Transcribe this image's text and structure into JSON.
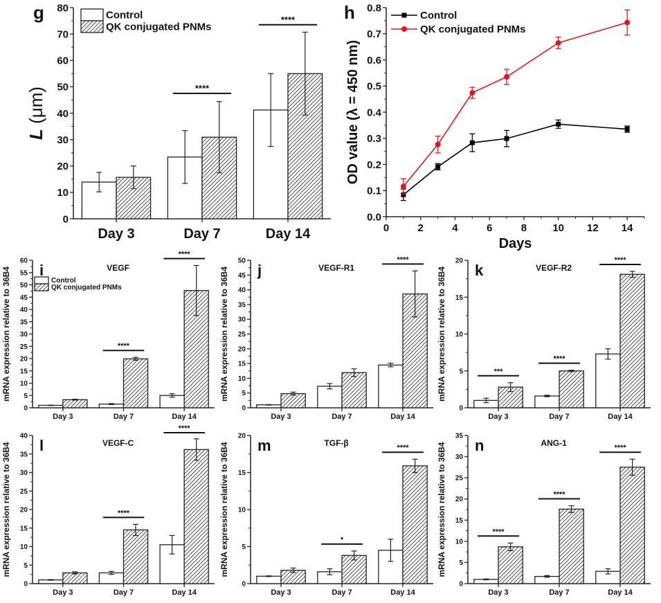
{
  "figure": {
    "series_names": [
      "Control",
      "QK conjugated PNMs"
    ],
    "colors": {
      "control_fill": "#ffffff",
      "qk_hatch": "#222222",
      "line_control": "#000000",
      "line_qk": "#e8141c",
      "axis": "#222222"
    }
  },
  "chart_data": [
    {
      "id": "g",
      "panel_label": "g",
      "type": "bar",
      "title": "",
      "xlabel": "",
      "ylabel": "L (μm)",
      "ylabel_italic_part": "L",
      "ylabel_rest": " (μm)",
      "categories": [
        "Day 3",
        "Day 7",
        "Day 14"
      ],
      "ylim": [
        0,
        80
      ],
      "yticks": [
        0,
        10,
        20,
        30,
        40,
        50,
        60,
        70,
        80
      ],
      "series": [
        {
          "name": "Control",
          "values": [
            13.9,
            23.4,
            41.2
          ],
          "errors": [
            3.7,
            10.0,
            13.8
          ]
        },
        {
          "name": "QK conjugated PNMs",
          "values": [
            15.7,
            30.9,
            55.0
          ],
          "errors": [
            4.3,
            13.5,
            15.7
          ]
        }
      ],
      "significance": [
        {
          "category": "Day 7",
          "label": "****"
        },
        {
          "category": "Day 14",
          "label": "****"
        }
      ],
      "legend": {
        "position": "top-left",
        "entries": [
          "Control",
          "QK conjugated PNMs"
        ]
      },
      "grid": false
    },
    {
      "id": "h",
      "panel_label": "h",
      "type": "line",
      "title": "",
      "xlabel": "Days",
      "ylabel": "OD value (λ = 450 nm)",
      "xlim": [
        0,
        15
      ],
      "xticks": [
        0,
        2,
        4,
        6,
        8,
        10,
        12,
        14
      ],
      "ylim": [
        0.0,
        0.8
      ],
      "yticks": [
        "0.0",
        "0.1",
        "0.2",
        "0.3",
        "0.4",
        "0.5",
        "0.6",
        "0.7",
        "0.8"
      ],
      "x": [
        1,
        3,
        5,
        7,
        10,
        14
      ],
      "series": [
        {
          "name": "Control",
          "marker": "square",
          "values": [
            0.084,
            0.191,
            0.283,
            0.299,
            0.354,
            0.335
          ],
          "errors": [
            0.022,
            0.012,
            0.034,
            0.031,
            0.016,
            0.012
          ]
        },
        {
          "name": "QK conjugated PNMs",
          "marker": "circle",
          "values": [
            0.116,
            0.276,
            0.474,
            0.535,
            0.665,
            0.743
          ],
          "errors": [
            0.029,
            0.032,
            0.021,
            0.029,
            0.022,
            0.048
          ]
        }
      ],
      "legend": {
        "position": "top-left",
        "entries": [
          "Control",
          "QK conjugated PNMs"
        ]
      },
      "grid": false
    },
    {
      "id": "i",
      "panel_label": "i",
      "type": "bar",
      "title": "VEGF",
      "xlabel": "",
      "ylabel": "mRNA expression relative to 36B4",
      "categories": [
        "Day 3",
        "Day 7",
        "Day 14"
      ],
      "ylim": [
        0,
        60
      ],
      "yticks": [
        0,
        5,
        10,
        15,
        20,
        25,
        30,
        35,
        40,
        45,
        50,
        55,
        60
      ],
      "series": [
        {
          "name": "Control",
          "values": [
            1.0,
            1.5,
            5.0
          ],
          "errors": [
            0.1,
            0.2,
            0.7
          ]
        },
        {
          "name": "QK conjugated PNMs",
          "values": [
            3.3,
            19.9,
            47.7
          ],
          "errors": [
            0.2,
            0.6,
            10.2
          ]
        }
      ],
      "significance": [
        {
          "category": "Day 7",
          "label": "****"
        },
        {
          "category": "Day 14",
          "label": "****"
        }
      ],
      "legend": {
        "position": "top-left",
        "entries": [
          "Control",
          "QK conjugated PNMs"
        ]
      },
      "grid": false
    },
    {
      "id": "j",
      "panel_label": "j",
      "type": "bar",
      "title": "VEGF-R1",
      "xlabel": "",
      "ylabel": "mRNA expression relative to 36B4",
      "categories": [
        "Day 3",
        "Day 7",
        "Day 14"
      ],
      "ylim": [
        0,
        50
      ],
      "yticks": [
        0,
        5,
        10,
        15,
        20,
        25,
        30,
        35,
        40,
        45,
        50
      ],
      "series": [
        {
          "name": "Control",
          "values": [
            1.0,
            7.3,
            14.5
          ],
          "errors": [
            0.1,
            0.9,
            0.6
          ]
        },
        {
          "name": "QK conjugated PNMs",
          "values": [
            4.8,
            11.9,
            38.6
          ],
          "errors": [
            0.5,
            1.3,
            7.8
          ]
        }
      ],
      "significance": [
        {
          "category": "Day 14",
          "label": "****"
        }
      ],
      "grid": false
    },
    {
      "id": "k",
      "panel_label": "k",
      "type": "bar",
      "title": "VEGF-R2",
      "xlabel": "",
      "ylabel": "mRNA expression relative to 36B4",
      "categories": [
        "Day 3",
        "Day 7",
        "Day 14"
      ],
      "ylim": [
        0,
        20
      ],
      "yticks": [
        0,
        5,
        10,
        15,
        20
      ],
      "series": [
        {
          "name": "Control",
          "values": [
            1.0,
            1.6,
            7.3
          ],
          "errors": [
            0.3,
            0.1,
            0.7
          ]
        },
        {
          "name": "QK conjugated PNMs",
          "values": [
            2.8,
            5.0,
            18.1
          ],
          "errors": [
            0.6,
            0.1,
            0.4
          ]
        }
      ],
      "significance": [
        {
          "category": "Day 3",
          "label": "***"
        },
        {
          "category": "Day 7",
          "label": "****"
        },
        {
          "category": "Day 14",
          "label": "****"
        }
      ],
      "grid": false
    },
    {
      "id": "l",
      "panel_label": "l",
      "type": "bar",
      "title": "VEGF-C",
      "xlabel": "",
      "ylabel": "mRNA expression relative to 36B4",
      "categories": [
        "Day 3",
        "Day 7",
        "Day 14"
      ],
      "ylim": [
        0,
        40
      ],
      "yticks": [
        0,
        5,
        10,
        15,
        20,
        25,
        30,
        35,
        40
      ],
      "series": [
        {
          "name": "Control",
          "values": [
            1.0,
            2.9,
            10.5
          ],
          "errors": [
            0.1,
            0.4,
            2.5
          ]
        },
        {
          "name": "QK conjugated PNMs",
          "values": [
            2.9,
            14.5,
            36.2
          ],
          "errors": [
            0.3,
            1.5,
            2.9
          ]
        }
      ],
      "significance": [
        {
          "category": "Day 7",
          "label": "****"
        },
        {
          "category": "Day 14",
          "label": "****"
        }
      ],
      "grid": false
    },
    {
      "id": "m",
      "panel_label": "m",
      "type": "bar",
      "title": "TGF-β",
      "xlabel": "",
      "ylabel": "mRNA expression relative to 36B4",
      "categories": [
        "Day 3",
        "Day 7",
        "Day 14"
      ],
      "ylim": [
        0,
        20
      ],
      "yticks": [
        0,
        5,
        10,
        15,
        20
      ],
      "series": [
        {
          "name": "Control",
          "values": [
            1.0,
            1.6,
            4.5
          ],
          "errors": [
            0.05,
            0.4,
            1.5
          ]
        },
        {
          "name": "QK conjugated PNMs",
          "values": [
            1.8,
            3.8,
            15.9
          ],
          "errors": [
            0.3,
            0.6,
            0.9
          ]
        }
      ],
      "significance": [
        {
          "category": "Day 7",
          "label": "*"
        },
        {
          "category": "Day 14",
          "label": "****"
        }
      ],
      "grid": false
    },
    {
      "id": "n",
      "panel_label": "n",
      "type": "bar",
      "title": "ANG-1",
      "xlabel": "",
      "ylabel": "mRNA expression relative to 36B4",
      "categories": [
        "Day 3",
        "Day 7",
        "Day 14"
      ],
      "ylim": [
        0,
        35
      ],
      "yticks": [
        0,
        5,
        10,
        15,
        20,
        25,
        30,
        35
      ],
      "series": [
        {
          "name": "Control",
          "values": [
            1.0,
            1.7,
            2.9
          ],
          "errors": [
            0.1,
            0.2,
            0.6
          ]
        },
        {
          "name": "QK conjugated PNMs",
          "values": [
            8.7,
            17.6,
            27.5
          ],
          "errors": [
            0.9,
            0.8,
            1.9
          ]
        }
      ],
      "significance": [
        {
          "category": "Day 3",
          "label": "****"
        },
        {
          "category": "Day 7",
          "label": "****"
        },
        {
          "category": "Day 14",
          "label": "****"
        }
      ],
      "grid": false
    }
  ]
}
